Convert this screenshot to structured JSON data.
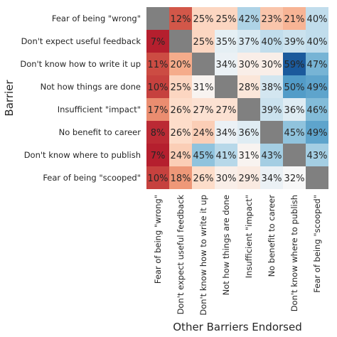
{
  "chart_data": {
    "type": "heatmap",
    "title": "",
    "xlabel": "Other Barriers Endorsed",
    "ylabel": "Barrier",
    "rows": [
      "Fear of being \"wrong\"",
      "Don't expect useful feedback",
      "Don't know how to write it up",
      "Not how things are done",
      "Insufficient \"impact\"",
      "No benefit to career",
      "Don't know where to publish",
      "Fear of being \"scooped\""
    ],
    "columns": [
      "Fear of being \"wrong\"",
      "Don't expect useful feedback",
      "Don't know how to write it up",
      "Not how things are done",
      "Insufficient \"impact\"",
      "No benefit to career",
      "Don't know where to publish",
      "Fear of being \"scooped\""
    ],
    "values": [
      [
        null,
        12,
        25,
        25,
        42,
        23,
        21,
        40
      ],
      [
        7,
        null,
        25,
        35,
        37,
        40,
        39,
        40
      ],
      [
        11,
        20,
        null,
        34,
        30,
        30,
        59,
        47
      ],
      [
        10,
        25,
        31,
        null,
        28,
        38,
        50,
        49
      ],
      [
        17,
        26,
        27,
        27,
        null,
        39,
        36,
        46
      ],
      [
        8,
        26,
        24,
        34,
        36,
        null,
        45,
        49
      ],
      [
        7,
        24,
        45,
        41,
        31,
        43,
        null,
        43
      ],
      [
        10,
        18,
        26,
        30,
        29,
        34,
        32,
        null
      ]
    ],
    "value_suffix": "%",
    "colormap": "RdBu",
    "diagonal_color": "#808080",
    "legend": "none",
    "grid": false
  }
}
